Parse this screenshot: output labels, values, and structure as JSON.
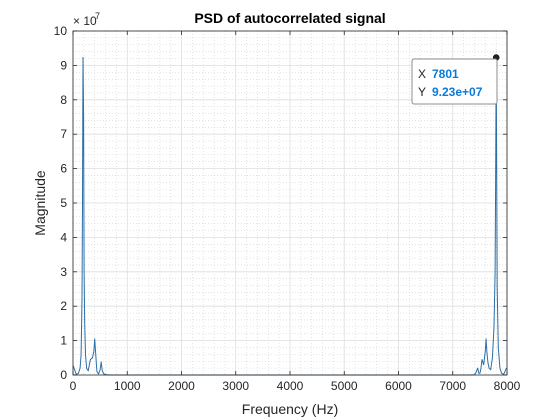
{
  "chart_data": {
    "type": "line",
    "title": "PSD of autocorrelated signal",
    "xlabel": "Frequency (Hz)",
    "ylabel": "Magnitude",
    "y_exponent_label": "× 10",
    "y_exponent_power": "7",
    "xlim": [
      0,
      8000
    ],
    "ylim": [
      0,
      10
    ],
    "xticks": [
      0,
      1000,
      2000,
      3000,
      4000,
      5000,
      6000,
      7000,
      8000
    ],
    "yticks": [
      0,
      1,
      2,
      3,
      4,
      5,
      6,
      7,
      8,
      9,
      10
    ],
    "grid": true,
    "minor_grid": true,
    "line_color": "#2b6ea8",
    "series": [
      {
        "x": [
          0,
          60,
          100,
          130,
          150,
          165,
          175,
          185,
          195,
          205,
          215,
          230,
          250,
          280,
          320,
          360,
          385,
          400,
          415,
          440,
          470,
          500,
          520,
          540,
          570,
          620,
          700,
          1000,
          2000,
          3000,
          4000,
          5000,
          6000,
          7000,
          7300,
          7400,
          7430,
          7460,
          7480,
          7500,
          7520,
          7540,
          7570,
          7600,
          7615,
          7630,
          7650,
          7670,
          7700,
          7730,
          7760,
          7780,
          7790,
          7801,
          7810,
          7820,
          7840,
          7870,
          7900,
          7940,
          7990
        ],
        "y": [
          0.28,
          0.02,
          0.05,
          0.2,
          0.6,
          2.2,
          5.0,
          9.23,
          7.5,
          3.0,
          1.5,
          0.6,
          0.2,
          0.12,
          0.45,
          0.5,
          0.7,
          1.05,
          0.7,
          0.1,
          0.03,
          0.15,
          0.38,
          0.12,
          0.03,
          0.01,
          0.0,
          0.0,
          0.0,
          0.0,
          0.0,
          0.0,
          0.0,
          0.0,
          0.0,
          0.01,
          0.08,
          0.2,
          0.05,
          0.05,
          0.2,
          0.45,
          0.3,
          0.7,
          1.05,
          0.65,
          0.35,
          0.2,
          0.15,
          0.5,
          1.4,
          3.0,
          5.5,
          9.23,
          6.0,
          2.5,
          0.8,
          0.2,
          0.05,
          0.02,
          0.2
        ]
      }
    ],
    "datatip": {
      "x_label": "X",
      "x_value": "7801",
      "y_label": "Y",
      "y_value": "9.23e+07",
      "point": [
        7801,
        9.23
      ],
      "value_color": "#0a7ad8"
    }
  }
}
